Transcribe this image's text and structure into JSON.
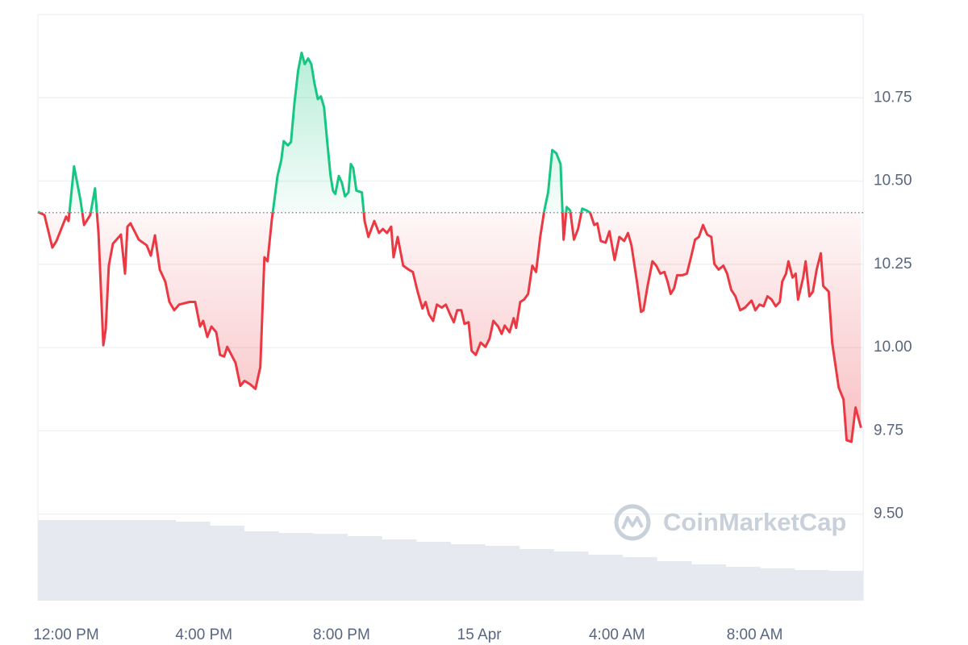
{
  "chart_data": {
    "type": "line",
    "x": [
      -0.82,
      -0.63,
      -0.4,
      -0.28,
      0,
      0.07,
      0.23,
      0.42,
      0.52,
      0.7,
      0.84,
      0.94,
      1.08,
      1.15,
      1.24,
      1.36,
      1.59,
      1.71,
      1.78,
      1.87,
      2.11,
      2.34,
      2.46,
      2.58,
      2.72,
      2.88,
      3.0,
      3.14,
      3.28,
      3.58,
      3.75,
      3.89,
      3.98,
      4.1,
      4.22,
      4.36,
      4.47,
      4.59,
      4.68,
      4.8,
      4.92,
      5.06,
      5.18,
      5.34,
      5.5,
      5.64,
      5.76,
      5.85,
      5.97,
      6.14,
      6.25,
      6.32,
      6.44,
      6.53,
      6.63,
      6.74,
      6.84,
      6.93,
      7.03,
      7.12,
      7.21,
      7.31,
      7.4,
      7.49,
      7.59,
      7.68,
      7.75,
      7.82,
      7.92,
      8.01,
      8.1,
      8.2,
      8.27,
      8.34,
      8.43,
      8.59,
      8.67,
      8.78,
      8.95,
      9.09,
      9.2,
      9.32,
      9.44,
      9.51,
      9.63,
      9.79,
      9.95,
      10.07,
      10.21,
      10.35,
      10.44,
      10.54,
      10.66,
      10.77,
      10.91,
      11.03,
      11.15,
      11.26,
      11.36,
      11.48,
      11.57,
      11.69,
      11.78,
      11.9,
      12.04,
      12.18,
      12.3,
      12.41,
      12.55,
      12.65,
      12.74,
      12.88,
      13.0,
      13.07,
      13.19,
      13.3,
      13.42,
      13.54,
      13.65,
      13.77,
      13.89,
      14.0,
      14.12,
      14.24,
      14.36,
      14.45,
      14.54,
      14.64,
      14.75,
      14.87,
      14.99,
      15.11,
      15.22,
      15.34,
      15.43,
      15.53,
      15.67,
      15.78,
      15.93,
      16.07,
      16.21,
      16.32,
      16.42,
      16.58,
      16.7,
      16.77,
      16.89,
      17.03,
      17.14,
      17.26,
      17.38,
      17.47,
      17.56,
      17.66,
      17.75,
      17.89,
      18.03,
      18.15,
      18.27,
      18.38,
      18.5,
      18.62,
      18.74,
      18.83,
      18.95,
      19.09,
      19.2,
      19.32,
      19.44,
      19.58,
      19.72,
      19.91,
      20.02,
      20.14,
      20.26,
      20.37,
      20.49,
      20.61,
      20.73,
      20.8,
      20.91,
      20.98,
      21.1,
      21.19,
      21.26,
      21.41,
      21.48,
      21.59,
      21.69,
      21.8,
      21.92,
      21.99,
      22.15,
      22.25,
      22.44,
      22.58,
      22.67,
      22.81,
      22.93,
      23.09
    ],
    "values": [
      10.407,
      10.398,
      10.3,
      10.32,
      10.393,
      10.38,
      10.544,
      10.441,
      10.368,
      10.398,
      10.478,
      10.344,
      10.007,
      10.056,
      10.246,
      10.312,
      10.339,
      10.222,
      10.363,
      10.373,
      10.324,
      10.307,
      10.276,
      10.337,
      10.234,
      10.198,
      10.137,
      10.112,
      10.129,
      10.137,
      10.137,
      10.063,
      10.08,
      10.032,
      10.063,
      10.046,
      9.978,
      9.973,
      10.002,
      9.978,
      9.954,
      9.885,
      9.9,
      9.89,
      9.876,
      9.941,
      10.271,
      10.259,
      10.38,
      10.515,
      10.563,
      10.62,
      10.607,
      10.617,
      10.734,
      10.832,
      10.885,
      10.851,
      10.868,
      10.851,
      10.795,
      10.746,
      10.754,
      10.722,
      10.612,
      10.515,
      10.471,
      10.461,
      10.515,
      10.495,
      10.454,
      10.466,
      10.551,
      10.539,
      10.471,
      10.466,
      10.38,
      10.332,
      10.38,
      10.344,
      10.356,
      10.344,
      10.363,
      10.271,
      10.332,
      10.246,
      10.234,
      10.227,
      10.168,
      10.117,
      10.137,
      10.1,
      10.08,
      10.129,
      10.12,
      10.129,
      10.1,
      10.076,
      10.112,
      10.112,
      10.071,
      10.076,
      9.99,
      9.978,
      10.015,
      10.002,
      10.027,
      10.08,
      10.063,
      10.041,
      10.066,
      10.046,
      10.088,
      10.059,
      10.137,
      10.144,
      10.161,
      10.246,
      10.227,
      10.332,
      10.412,
      10.466,
      10.593,
      10.583,
      10.551,
      10.324,
      10.422,
      10.412,
      10.324,
      10.356,
      10.417,
      10.412,
      10.405,
      10.368,
      10.373,
      10.32,
      10.315,
      10.349,
      10.263,
      10.332,
      10.32,
      10.344,
      10.307,
      10.198,
      10.107,
      10.112,
      10.185,
      10.259,
      10.246,
      10.222,
      10.227,
      10.198,
      10.161,
      10.178,
      10.217,
      10.217,
      10.222,
      10.271,
      10.324,
      10.332,
      10.368,
      10.339,
      10.332,
      10.251,
      10.234,
      10.246,
      10.222,
      10.173,
      10.154,
      10.112,
      10.12,
      10.141,
      10.112,
      10.129,
      10.124,
      10.154,
      10.144,
      10.124,
      10.137,
      10.198,
      10.222,
      10.259,
      10.21,
      10.222,
      10.144,
      10.21,
      10.259,
      10.154,
      10.168,
      10.234,
      10.283,
      10.185,
      10.168,
      10.015,
      9.88,
      9.844,
      9.722,
      9.717,
      9.82,
      9.759
    ],
    "baseline": 10.405,
    "color_up": "#16c784",
    "color_down": "#ea3943",
    "xlim": [
      -0.82,
      23.15
    ],
    "xticks": [
      {
        "value": 0,
        "label": "12:00 PM"
      },
      {
        "value": 4,
        "label": "4:00 PM"
      },
      {
        "value": 8,
        "label": "8:00 PM"
      },
      {
        "value": 12,
        "label": "15 Apr"
      },
      {
        "value": 16,
        "label": "4:00 AM"
      },
      {
        "value": 20,
        "label": "8:00 AM"
      }
    ],
    "ylim": [
      9.24,
      11.0
    ],
    "yticks": [
      {
        "value": 9.5,
        "label": "9.50"
      },
      9.75,
      {
        "value": 10,
        "label": "10.00"
      },
      10.25,
      {
        "value": 10.5,
        "label": "10.50"
      },
      10.75
    ],
    "grid": true,
    "volume": {
      "color": "#e6e9ef",
      "ylim": [
        0,
        100
      ],
      "values": [
        100,
        100,
        100,
        100,
        98,
        93,
        86,
        84,
        83,
        80,
        76,
        73,
        70,
        68,
        64,
        61,
        57,
        54,
        49,
        45,
        42,
        40,
        38,
        37
      ]
    },
    "watermark": "CoinMarketCap"
  }
}
